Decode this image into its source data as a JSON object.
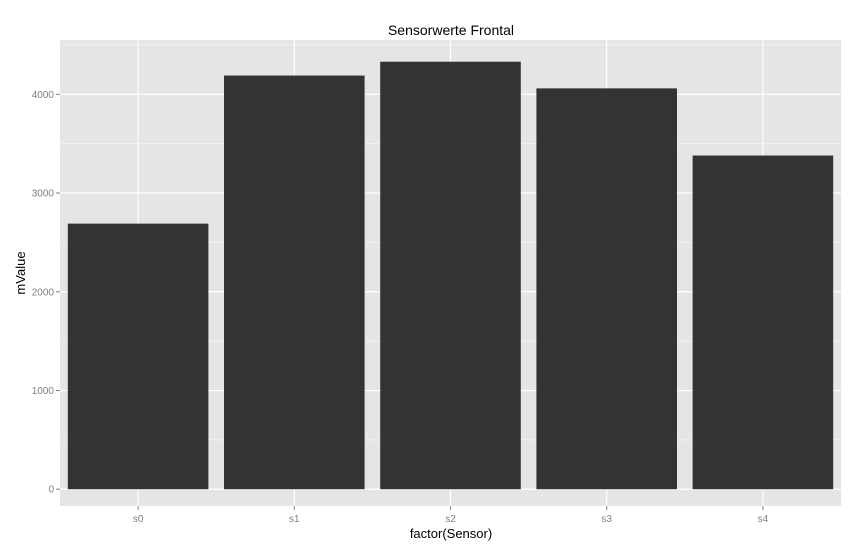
{
  "chart_data": {
    "type": "bar",
    "title": "Sensorwerte Frontal",
    "xlabel": "factor(Sensor)",
    "ylabel": "mValue",
    "categories": [
      "s0",
      "s1",
      "s2",
      "s3",
      "s4"
    ],
    "values": [
      2690,
      4190,
      4330,
      4060,
      3380
    ],
    "ylim": [
      -170,
      4550
    ],
    "yticks": [
      0,
      1000,
      2000,
      3000,
      4000
    ],
    "ytick_labels": [
      "0",
      "1000",
      "2000",
      "3000",
      "4000"
    ],
    "grid": true,
    "legend": "none",
    "colors": {
      "bar": "#333333",
      "panel_background": "#e5e5e5",
      "grid_major": "#ffffff",
      "grid_minor": "#f2f2f2",
      "tick_text": "#7f7f7f",
      "tick_mark": "#7f7f7f"
    }
  }
}
